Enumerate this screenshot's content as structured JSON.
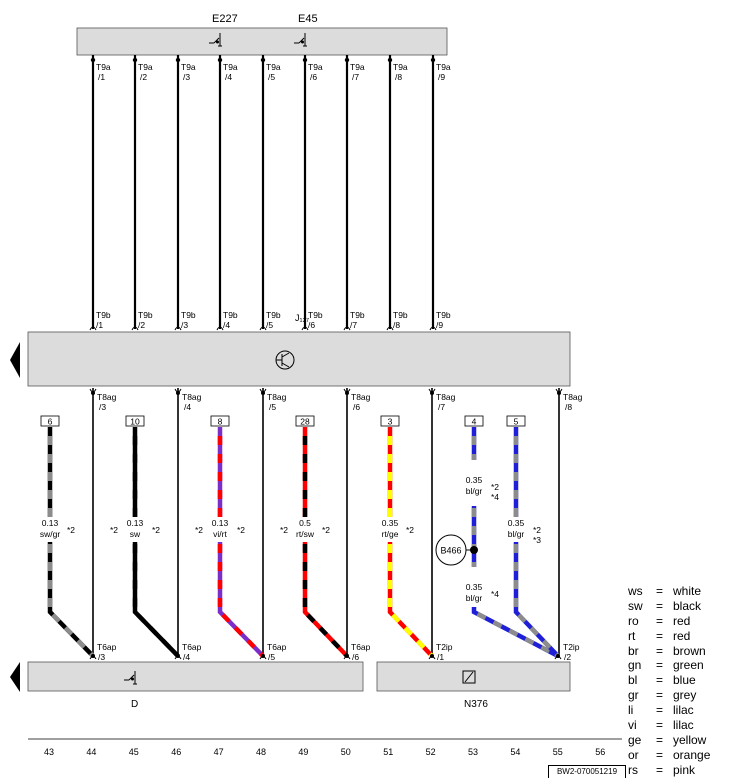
{
  "components": {
    "e227": "E227",
    "e45": "E45",
    "j": "J₁₂₇",
    "d": "D",
    "n376": "N376",
    "b466": "B466"
  },
  "top_pins": {
    "upper_connector": "T9a",
    "lower_connector": "T9b",
    "numbers": [
      "/1",
      "/2",
      "/3",
      "/4",
      "/5",
      "/6",
      "/7",
      "/8",
      "/9"
    ]
  },
  "t8ag": [
    {
      "conn": "T8ag",
      "pin": "/3"
    },
    {
      "conn": "T8ag",
      "pin": "/4"
    },
    {
      "conn": "T8ag",
      "pin": "/5"
    },
    {
      "conn": "T8ag",
      "pin": "/6"
    },
    {
      "conn": "T8ag",
      "pin": "/7"
    },
    {
      "conn": "T8ag",
      "pin": "/8"
    }
  ],
  "bottom_pins": [
    {
      "conn": "T6ap",
      "pin": "/3"
    },
    {
      "conn": "T6ap",
      "pin": "/4"
    },
    {
      "conn": "T6ap",
      "pin": "/5"
    },
    {
      "conn": "T6ap",
      "pin": "/6"
    },
    {
      "conn": "T2ip",
      "pin": "/1"
    },
    {
      "conn": "T2ip",
      "pin": "/2"
    }
  ],
  "wires": [
    {
      "ref": "6",
      "size": "0.13",
      "color": "sw/gr",
      "note": "*2"
    },
    {
      "ref": "10",
      "size": "0.13",
      "color": "sw",
      "note": "*2"
    },
    {
      "ref": "8",
      "size": "0.13",
      "color": "vi/rt",
      "note": "*2"
    },
    {
      "ref": "28",
      "size": "0.5",
      "color": "rt/sw",
      "note": "*2"
    },
    {
      "ref": "3",
      "size": "0.35",
      "color": "rt/ge",
      "note": "*2"
    },
    {
      "ref": "4",
      "size": "0.35",
      "color": "bl/gr",
      "note": "*2",
      "note2": "*4",
      "size_lower": "0.35",
      "color_lower": "bl/gr",
      "note_lower": "*4"
    },
    {
      "ref": "5",
      "size": "0.35",
      "color": "bl/gr",
      "note": "*2",
      "note2": "*3"
    }
  ],
  "left_notes": [
    "*2",
    "*2",
    "*2"
  ],
  "grid": [
    "43",
    "44",
    "45",
    "46",
    "47",
    "48",
    "49",
    "50",
    "51",
    "52",
    "53",
    "54",
    "55",
    "56"
  ],
  "legend": [
    {
      "abbr": "ws",
      "eq": "=",
      "name": "white"
    },
    {
      "abbr": "sw",
      "eq": "=",
      "name": "black"
    },
    {
      "abbr": "ro",
      "eq": "=",
      "name": "red"
    },
    {
      "abbr": "rt",
      "eq": "=",
      "name": "red"
    },
    {
      "abbr": "br",
      "eq": "=",
      "name": "brown"
    },
    {
      "abbr": "gn",
      "eq": "=",
      "name": "green"
    },
    {
      "abbr": "bl",
      "eq": "=",
      "name": "blue"
    },
    {
      "abbr": "gr",
      "eq": "=",
      "name": "grey"
    },
    {
      "abbr": "li",
      "eq": "=",
      "name": "lilac"
    },
    {
      "abbr": "vi",
      "eq": "=",
      "name": "lilac"
    },
    {
      "abbr": "ge",
      "eq": "=",
      "name": "yellow"
    },
    {
      "abbr": "or",
      "eq": "=",
      "name": "orange"
    },
    {
      "abbr": "rs",
      "eq": "=",
      "name": "pink"
    }
  ],
  "doc_id": "BW2-070051219",
  "colors": {
    "sw": "#000000",
    "gr": "#8c8c8c",
    "vi": "#7b2fc8",
    "rt": "#ff0000",
    "ge": "#ffff00",
    "bl": "#1f1fd8",
    "box": "#dcdcdc"
  }
}
